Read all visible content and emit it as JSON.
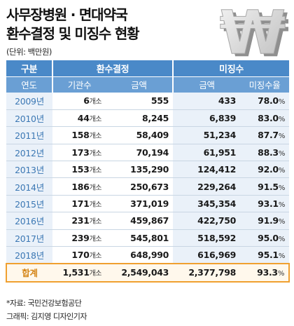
{
  "title_line1": "사무장병원 · 면대약국",
  "title_line2": "환수결정 및 미징수 현황",
  "unit": "(단위: 백만원)",
  "logo_symbol": "₩",
  "header": {
    "col_group": "구분",
    "group_decision": "환수결정",
    "group_uncollected": "미징수",
    "col_year": "연도",
    "col_institutions": "기관수",
    "col_amount_decision": "금액",
    "col_amount_uncollected": "금액",
    "col_rate": "미징수율"
  },
  "count_suffix": "개소",
  "pct_suffix": "%",
  "rows": [
    {
      "year": "2009년",
      "count": "6",
      "decision": "555",
      "uncollected": "433",
      "rate": "78.0"
    },
    {
      "year": "2010년",
      "count": "44",
      "decision": "8,245",
      "uncollected": "6,839",
      "rate": "83.0"
    },
    {
      "year": "2011년",
      "count": "158",
      "decision": "58,409",
      "uncollected": "51,234",
      "rate": "87.7"
    },
    {
      "year": "2012년",
      "count": "173",
      "decision": "70,194",
      "uncollected": "61,951",
      "rate": "88.3"
    },
    {
      "year": "2013년",
      "count": "153",
      "decision": "135,290",
      "uncollected": "124,412",
      "rate": "92.0"
    },
    {
      "year": "2014년",
      "count": "186",
      "decision": "250,673",
      "uncollected": "229,264",
      "rate": "91.5"
    },
    {
      "year": "2015년",
      "count": "171",
      "decision": "371,019",
      "uncollected": "345,354",
      "rate": "93.1"
    },
    {
      "year": "2016년",
      "count": "231",
      "decision": "459,867",
      "uncollected": "422,750",
      "rate": "91.9"
    },
    {
      "year": "2017년",
      "count": "239",
      "decision": "545,801",
      "uncollected": "518,592",
      "rate": "95.0"
    },
    {
      "year": "2018년",
      "count": "170",
      "decision": "648,990",
      "uncollected": "616,969",
      "rate": "95.1"
    }
  ],
  "total": {
    "label": "합계",
    "count": "1,531",
    "decision": "2,549,043",
    "uncollected": "2,377,798",
    "rate": "93.3"
  },
  "source": "*자료: 국민건강보험공단",
  "credit": "그래픽: 김지영 디자인기자",
  "colors": {
    "header_dark": "#4a89c8",
    "header_light": "#6a9fd4",
    "year_text": "#3c78b4",
    "total_border": "#f0a030",
    "total_label": "#d48415"
  }
}
